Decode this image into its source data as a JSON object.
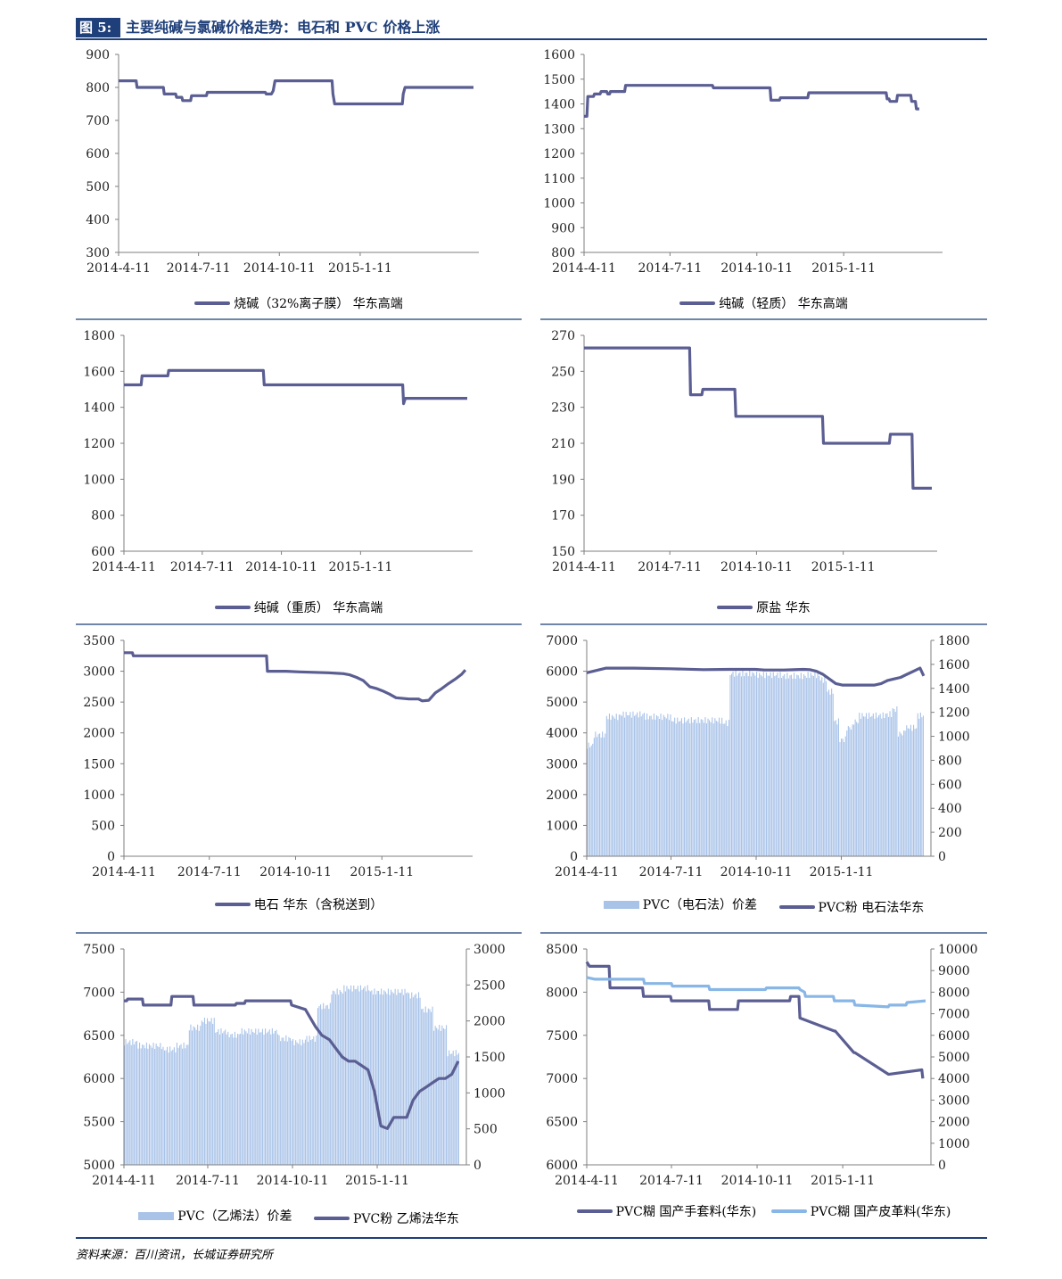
{
  "figure": {
    "label": "图 5:",
    "title": "主要纯碱与氯碱价格走势：电石和 PVC 价格上涨",
    "source": "资料来源：百川资讯，长城证券研究所"
  },
  "colors": {
    "line": "#5b5e92",
    "bar": "#a9c3e8",
    "line2": "#88b6e6",
    "header": "#1f3f7a"
  },
  "chart_data": [
    {
      "type": "line",
      "legend": [
        "烧碱（32%离子膜） 华东高端"
      ],
      "x_ticks": [
        "2014-4-11",
        "2014-7-11",
        "2014-10-11",
        "2015-1-11"
      ],
      "ylim": [
        300,
        900
      ],
      "y_ticks": [
        "300",
        "400",
        "500",
        "600",
        "700",
        "800",
        "900"
      ],
      "series": [
        {
          "name": "烧碱（32%离子膜） 华东高端",
          "x": [
            "2014-4-11",
            "2014-5-1",
            "2014-5-2",
            "2014-6-1",
            "2014-6-2",
            "2014-6-15",
            "2014-6-16",
            "2014-6-22",
            "2014-6-23",
            "2014-7-2",
            "2014-7-3",
            "2014-7-20",
            "2014-7-21",
            "2014-9-25",
            "2014-9-26",
            "2014-10-2",
            "2014-10-4",
            "2014-10-6",
            "2014-12-10",
            "2014-12-11",
            "2014-12-13",
            "2015-2-28",
            "2015-3-1",
            "2015-3-3",
            "2015-5-20"
          ],
          "y": [
            820,
            820,
            800,
            800,
            780,
            780,
            770,
            770,
            760,
            760,
            775,
            775,
            785,
            785,
            780,
            780,
            790,
            820,
            820,
            780,
            750,
            750,
            780,
            800,
            800
          ]
        }
      ]
    },
    {
      "type": "line",
      "legend": [
        "纯碱（轻质） 华东高端"
      ],
      "x_ticks": [
        "2014-4-11",
        "2014-7-11",
        "2014-10-11",
        "2015-1-11"
      ],
      "ylim": [
        800,
        1600
      ],
      "y_ticks": [
        "800",
        "900",
        "1000",
        "1100",
        "1200",
        "1300",
        "1400",
        "1500",
        "1600"
      ],
      "series": [
        {
          "name": "纯碱（轻质） 华东高端",
          "x": [
            "2014-4-11",
            "2014-4-14",
            "2014-4-15",
            "2014-4-21",
            "2014-4-22",
            "2014-4-28",
            "2014-4-29",
            "2014-5-5",
            "2014-5-6",
            "2014-5-8",
            "2014-5-9",
            "2014-5-24",
            "2014-5-25",
            "2014-8-25",
            "2014-8-26",
            "2014-10-25",
            "2014-10-26",
            "2014-11-4",
            "2014-11-5",
            "2014-12-4",
            "2014-12-5",
            "2015-2-25",
            "2015-2-26",
            "2015-2-28",
            "2015-3-1",
            "2015-3-8",
            "2015-3-9",
            "2015-3-23",
            "2015-3-24",
            "2015-3-28",
            "2015-3-29",
            "2015-4-1"
          ],
          "y": [
            1350,
            1350,
            1430,
            1430,
            1440,
            1440,
            1450,
            1450,
            1440,
            1440,
            1450,
            1450,
            1475,
            1475,
            1465,
            1465,
            1415,
            1415,
            1425,
            1425,
            1445,
            1445,
            1420,
            1420,
            1410,
            1410,
            1435,
            1435,
            1410,
            1410,
            1380,
            1380
          ]
        }
      ]
    },
    {
      "type": "line",
      "legend": [
        "纯碱（重质） 华东高端"
      ],
      "x_ticks": [
        "2014-4-11",
        "2014-7-11",
        "2014-10-11",
        "2015-1-11"
      ],
      "ylim": [
        600,
        1800
      ],
      "y_ticks": [
        "600",
        "800",
        "1000",
        "1200",
        "1400",
        "1600",
        "1800"
      ],
      "series": [
        {
          "name": "纯碱（重质） 华东高端",
          "x": [
            "2014-4-11",
            "2014-5-1",
            "2014-5-2",
            "2014-6-1",
            "2014-6-2",
            "2014-9-20",
            "2014-9-21",
            "2015-3-1",
            "2015-3-2",
            "2015-3-4",
            "2015-5-15"
          ],
          "y": [
            1525,
            1525,
            1575,
            1575,
            1605,
            1605,
            1525,
            1525,
            1420,
            1450,
            1450
          ]
        }
      ]
    },
    {
      "type": "line",
      "legend": [
        "原盐 华东"
      ],
      "x_ticks": [
        "2014-4-11",
        "2014-7-11",
        "2014-10-11",
        "2015-1-11"
      ],
      "ylim": [
        150,
        270
      ],
      "y_ticks": [
        "150",
        "170",
        "190",
        "210",
        "230",
        "250",
        "270"
      ],
      "series": [
        {
          "name": "原盐 华东",
          "x": [
            "2014-4-11",
            "2014-8-1",
            "2014-8-2",
            "2014-8-14",
            "2014-8-15",
            "2014-9-18",
            "2014-9-19",
            "2014-12-20",
            "2014-12-21",
            "2015-3-1",
            "2015-3-2",
            "2015-3-25",
            "2015-3-26",
            "2015-4-15"
          ],
          "y": [
            263,
            263,
            237,
            237,
            240,
            240,
            225,
            225,
            210,
            210,
            215,
            215,
            185,
            185
          ]
        }
      ]
    },
    {
      "type": "line",
      "legend": [
        "电石 华东（含税送到）"
      ],
      "x_ticks": [
        "2014-4-11",
        "2014-7-11",
        "2014-10-11",
        "2015-1-11"
      ],
      "ylim": [
        0,
        3500
      ],
      "y_ticks": [
        "0",
        "500",
        "1000",
        "1500",
        "2000",
        "2500",
        "3000",
        "3500"
      ],
      "series": [
        {
          "name": "电石 华东（含税送到）",
          "x": [
            "2014-4-11",
            "2014-4-20",
            "2014-4-21",
            "2014-9-10",
            "2014-9-11",
            "2014-10-1",
            "2014-10-15",
            "2014-11-15",
            "2014-12-1",
            "2014-12-8",
            "2014-12-15",
            "2014-12-22",
            "2014-12-29",
            "2015-1-5",
            "2015-1-12",
            "2015-1-19",
            "2015-1-26",
            "2015-2-9",
            "2015-2-19",
            "2015-2-23",
            "2015-3-2",
            "2015-3-9",
            "2015-3-16",
            "2015-3-23",
            "2015-3-30",
            "2015-4-6",
            "2015-4-10"
          ],
          "y": [
            3300,
            3300,
            3250,
            3250,
            3000,
            3000,
            2990,
            2975,
            2960,
            2940,
            2900,
            2850,
            2750,
            2720,
            2680,
            2630,
            2570,
            2550,
            2550,
            2520,
            2530,
            2650,
            2720,
            2800,
            2870,
            2950,
            3020
          ]
        }
      ]
    },
    {
      "type": "bar+line",
      "legend": [
        "PVC（电石法）价差",
        "PVC粉 电石法华东"
      ],
      "x_ticks": [
        "2014-4-11",
        "2014-7-11",
        "2014-10-11",
        "2015-1-11"
      ],
      "ylim": [
        0,
        7000
      ],
      "y_ticks": [
        "0",
        "1000",
        "2000",
        "3000",
        "4000",
        "5000",
        "6000",
        "7000"
      ],
      "y2lim": [
        0,
        1800
      ],
      "y2_ticks": [
        "0",
        "200",
        "400",
        "600",
        "800",
        "1000",
        "1200",
        "1400",
        "1600",
        "1800"
      ],
      "series": [
        {
          "name": "PVC（电石法）价差",
          "axis": "right",
          "x": [
            "2014-4-11",
            "2014-4-18",
            "2014-4-25",
            "2014-5-2",
            "2014-5-16",
            "2014-6-13",
            "2014-7-11",
            "2014-8-8",
            "2014-9-5",
            "2014-9-11",
            "2014-9-12",
            "2014-10-10",
            "2014-11-7",
            "2014-12-5",
            "2014-12-19",
            "2014-12-26",
            "2015-1-2",
            "2015-1-9",
            "2015-1-16",
            "2015-1-23",
            "2015-1-30",
            "2015-2-13",
            "2015-2-27",
            "2015-3-6",
            "2015-3-13",
            "2015-3-20",
            "2015-3-27",
            "2015-4-3",
            "2015-4-10"
          ],
          "y": [
            950,
            1040,
            1040,
            1190,
            1210,
            1190,
            1160,
            1160,
            1140,
            1140,
            1550,
            1540,
            1530,
            1540,
            1500,
            1400,
            1150,
            1000,
            1100,
            1150,
            1200,
            1200,
            1210,
            1250,
            1050,
            1100,
            1100,
            1200,
            1210
          ]
        },
        {
          "name": "PVC粉 电石法华东",
          "axis": "left",
          "x": [
            "2014-4-11",
            "2014-4-18",
            "2014-4-25",
            "2014-5-2",
            "2014-6-1",
            "2014-7-11",
            "2014-8-15",
            "2014-9-11",
            "2014-10-10",
            "2014-10-20",
            "2014-11-10",
            "2014-12-1",
            "2014-12-8",
            "2014-12-15",
            "2014-12-22",
            "2014-12-29",
            "2015-1-5",
            "2015-1-12",
            "2015-2-16",
            "2015-2-23",
            "2015-3-2",
            "2015-3-9",
            "2015-3-16",
            "2015-3-23",
            "2015-3-30",
            "2015-4-6",
            "2015-4-10"
          ],
          "y": [
            5950,
            6000,
            6050,
            6100,
            6100,
            6080,
            6050,
            6060,
            6060,
            6040,
            6040,
            6060,
            6050,
            6000,
            5900,
            5750,
            5600,
            5550,
            5550,
            5600,
            5700,
            5750,
            5800,
            5900,
            6000,
            6100,
            5850
          ]
        }
      ]
    },
    {
      "type": "bar+line",
      "legend": [
        "PVC（乙烯法）价差",
        "PVC粉 乙烯法华东"
      ],
      "x_ticks": [
        "2014-4-11",
        "2014-7-11",
        "2014-10-11",
        "2015-1-11"
      ],
      "ylim": [
        5000,
        7500
      ],
      "y_ticks": [
        "5000",
        "5500",
        "6000",
        "6500",
        "7000",
        "7500"
      ],
      "y2lim": [
        0,
        3000
      ],
      "y2_ticks": [
        "0",
        "500",
        "1000",
        "1500",
        "2000",
        "2500",
        "3000"
      ],
      "series": [
        {
          "name": "PVC（乙烯法）价差",
          "axis": "right",
          "x": [
            "2014-4-11",
            "2014-4-25",
            "2014-5-9",
            "2014-5-23",
            "2014-6-6",
            "2014-6-20",
            "2014-7-4",
            "2014-7-18",
            "2014-8-1",
            "2014-8-15",
            "2014-8-29",
            "2014-9-12",
            "2014-9-26",
            "2014-10-10",
            "2014-10-24",
            "2014-11-7",
            "2014-11-21",
            "2014-12-5",
            "2014-12-19",
            "2015-1-2",
            "2015-1-16",
            "2015-1-30",
            "2015-2-13",
            "2015-2-27",
            "2015-3-13",
            "2015-3-27",
            "2015-4-10"
          ],
          "y": [
            1750,
            1700,
            1700,
            1650,
            1700,
            1950,
            2050,
            1900,
            1850,
            1900,
            1900,
            1900,
            1800,
            1750,
            1800,
            2250,
            2450,
            2500,
            2500,
            2450,
            2450,
            2450,
            2400,
            2200,
            1950,
            1600,
            1400
          ]
        },
        {
          "name": "PVC粉 乙烯法华东",
          "axis": "left",
          "x": [
            "2014-4-11",
            "2014-4-14",
            "2014-4-15",
            "2014-5-1",
            "2014-5-2",
            "2014-6-1",
            "2014-6-2",
            "2014-6-25",
            "2014-6-26",
            "2014-8-10",
            "2014-8-11",
            "2014-8-20",
            "2014-8-21",
            "2014-10-9",
            "2014-10-10",
            "2014-10-25",
            "2014-11-5",
            "2014-11-12",
            "2014-11-20",
            "2014-11-27",
            "2014-12-4",
            "2014-12-11",
            "2014-12-18",
            "2015-1-1",
            "2015-1-8",
            "2015-1-15",
            "2015-1-22",
            "2015-1-29",
            "2015-2-12",
            "2015-2-19",
            "2015-2-26",
            "2015-3-5",
            "2015-3-12",
            "2015-3-19",
            "2015-3-26",
            "2015-4-2",
            "2015-4-9"
          ],
          "y": [
            6900,
            6900,
            6920,
            6920,
            6850,
            6850,
            6950,
            6950,
            6850,
            6850,
            6870,
            6870,
            6900,
            6900,
            6850,
            6800,
            6600,
            6500,
            6450,
            6350,
            6250,
            6200,
            6200,
            6100,
            5850,
            5450,
            5420,
            5550,
            5550,
            5750,
            5850,
            5900,
            5950,
            6000,
            6000,
            6050,
            6200
          ]
        }
      ]
    },
    {
      "type": "line",
      "legend": [
        "PVC糊 国产手套料(华东)",
        "PVC糊 国产皮革料(华东)"
      ],
      "x_ticks": [
        "2014-4-11",
        "2014-7-11",
        "2014-10-11",
        "2015-1-11"
      ],
      "ylim": [
        6000,
        8500
      ],
      "y_ticks": [
        "6000",
        "6500",
        "7000",
        "7500",
        "8000",
        "8500"
      ],
      "y2lim": [
        0,
        10000
      ],
      "y2_ticks": [
        "0",
        "1000",
        "2000",
        "3000",
        "4000",
        "5000",
        "6000",
        "7000",
        "8000",
        "9000",
        "10000"
      ],
      "series": [
        {
          "name": "PVC糊 国产手套料(华东)",
          "axis": "left",
          "x": [
            "2014-4-11",
            "2014-4-14",
            "2014-4-15",
            "2014-5-5",
            "2014-5-6",
            "2014-6-10",
            "2014-6-11",
            "2014-7-10",
            "2014-7-11",
            "2014-8-20",
            "2014-8-21",
            "2014-9-20",
            "2014-9-21",
            "2014-11-15",
            "2014-11-16",
            "2014-11-25",
            "2014-11-26",
            "2015-1-2",
            "2015-1-3",
            "2015-1-23",
            "2015-1-24",
            "2015-3-1",
            "2015-3-2",
            "2015-4-6",
            "2015-4-7"
          ],
          "y": [
            8350,
            8300,
            8300,
            8300,
            8050,
            8050,
            7950,
            7950,
            7900,
            7900,
            7800,
            7800,
            7900,
            7900,
            7950,
            7950,
            7700,
            7550,
            7550,
            7300,
            7300,
            7050,
            7050,
            7100,
            7000
          ]
        },
        {
          "name": "PVC糊 国产皮革料(华东)",
          "axis": "left",
          "x": [
            "2014-4-11",
            "2014-4-20",
            "2014-4-21",
            "2014-6-11",
            "2014-6-12",
            "2014-7-11",
            "2014-7-12",
            "2014-8-20",
            "2014-8-21",
            "2014-10-20",
            "2014-10-21",
            "2014-11-25",
            "2014-11-26",
            "2014-12-1",
            "2014-12-2",
            "2015-1-1",
            "2015-1-2",
            "2015-1-23",
            "2015-1-24",
            "2015-3-1",
            "2015-3-2",
            "2015-3-20",
            "2015-3-21",
            "2015-4-10"
          ],
          "y": [
            8170,
            8150,
            8150,
            8150,
            8100,
            8100,
            8070,
            8070,
            8030,
            8030,
            8050,
            8050,
            8030,
            8000,
            7950,
            7950,
            7900,
            7900,
            7850,
            7830,
            7850,
            7850,
            7880,
            7900
          ]
        }
      ]
    }
  ]
}
